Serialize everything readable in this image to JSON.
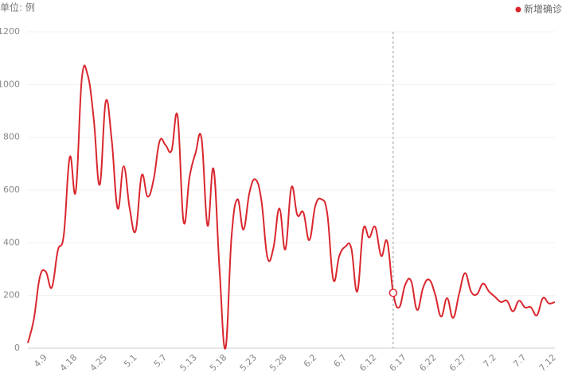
{
  "chart_data": {
    "type": "line",
    "unit_label": "单位: 例",
    "categories": [
      null,
      null,
      null,
      "4.9",
      null,
      null,
      null,
      null,
      "4.18",
      null,
      null,
      null,
      null,
      "4.25",
      null,
      null,
      null,
      null,
      "5.1",
      null,
      null,
      null,
      null,
      "5.7",
      null,
      null,
      null,
      null,
      "5.13",
      null,
      null,
      null,
      null,
      "5.18",
      null,
      null,
      null,
      null,
      "5.23",
      null,
      null,
      null,
      null,
      "5.28",
      null,
      null,
      null,
      null,
      "6.2",
      null,
      null,
      null,
      null,
      "6.7",
      null,
      null,
      null,
      null,
      "6.12",
      null,
      null,
      null,
      null,
      "6.17",
      null,
      null,
      null,
      null,
      "6.22",
      null,
      null,
      null,
      null,
      "6.27",
      null,
      null,
      null,
      null,
      "7.2",
      null,
      null,
      null,
      null,
      "7.7",
      null,
      null,
      null,
      null,
      "7.12"
    ],
    "series": [
      {
        "name": "新增确诊",
        "color": "#d9272e",
        "values": [
          20,
          110,
          270,
          290,
          230,
          370,
          430,
          725,
          595,
          1020,
          1035,
          870,
          620,
          935,
          790,
          530,
          690,
          530,
          445,
          655,
          575,
          640,
          785,
          770,
          750,
          880,
          480,
          650,
          740,
          795,
          465,
          680,
          300,
          0,
          420,
          565,
          450,
          590,
          640,
          560,
          345,
          380,
          530,
          375,
          610,
          505,
          515,
          410,
          540,
          565,
          510,
          260,
          350,
          385,
          380,
          215,
          450,
          420,
          460,
          350,
          405,
          210,
          155,
          240,
          255,
          145,
          230,
          260,
          205,
          120,
          190,
          115,
          205,
          285,
          215,
          205,
          245,
          215,
          195,
          175,
          180,
          140,
          180,
          155,
          155,
          125,
          190,
          170,
          175
        ]
      }
    ],
    "highlight_index": 61,
    "ylim": [
      0,
      1200
    ],
    "yticks": [
      0,
      200,
      400,
      600,
      800,
      1000,
      1200
    ],
    "grid": true,
    "legend": "top-right"
  }
}
